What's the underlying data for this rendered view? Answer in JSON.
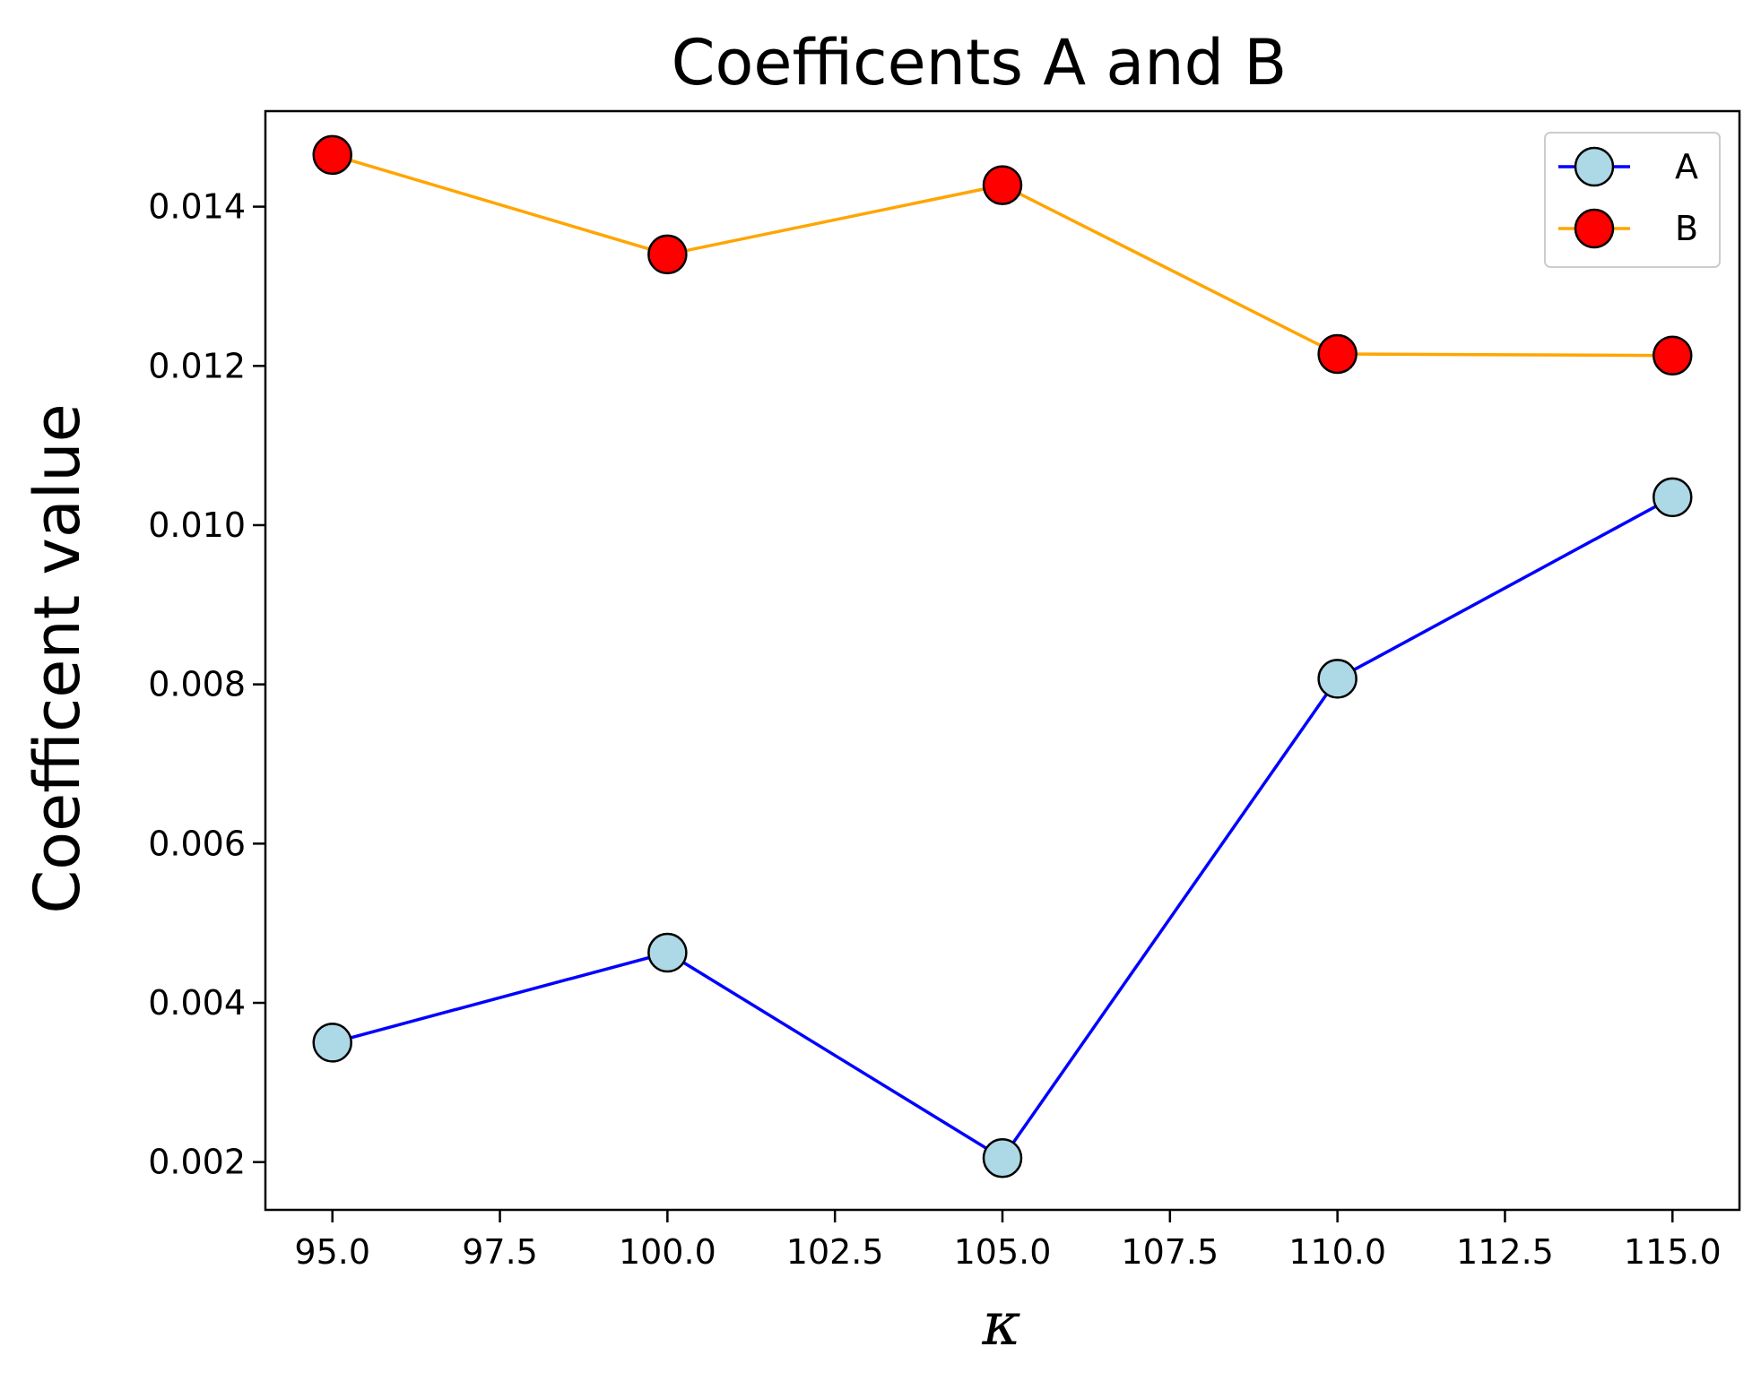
{
  "chart_data": {
    "type": "line",
    "title": "Coefficents A and B",
    "xlabel": "κ",
    "ylabel": "Coefficent value",
    "x": [
      95.0,
      100.0,
      105.0,
      110.0,
      115.0
    ],
    "xlim": [
      94.0,
      116.0
    ],
    "ylim": [
      0.0014,
      0.0152
    ],
    "xticks": [
      95.0,
      97.5,
      100.0,
      102.5,
      105.0,
      107.5,
      110.0,
      112.5,
      115.0
    ],
    "xtick_labels": [
      "95.0",
      "97.5",
      "100.0",
      "102.5",
      "105.0",
      "107.5",
      "110.0",
      "112.5",
      "115.0"
    ],
    "yticks": [
      0.002,
      0.004,
      0.006,
      0.008,
      0.01,
      0.012,
      0.014
    ],
    "ytick_labels": [
      "0.002",
      "0.004",
      "0.006",
      "0.008",
      "0.010",
      "0.012",
      "0.014"
    ],
    "grid": false,
    "legend_position": "top-right",
    "series": [
      {
        "name": "A",
        "values": [
          0.0035,
          0.00463,
          0.00205,
          0.00807,
          0.01035
        ],
        "line_color": "#0000ff",
        "marker_color": "#add8e6"
      },
      {
        "name": "B",
        "values": [
          0.01465,
          0.0134,
          0.01427,
          0.01215,
          0.01213
        ],
        "line_color": "#ffa500",
        "marker_color": "#ff0000"
      }
    ]
  }
}
